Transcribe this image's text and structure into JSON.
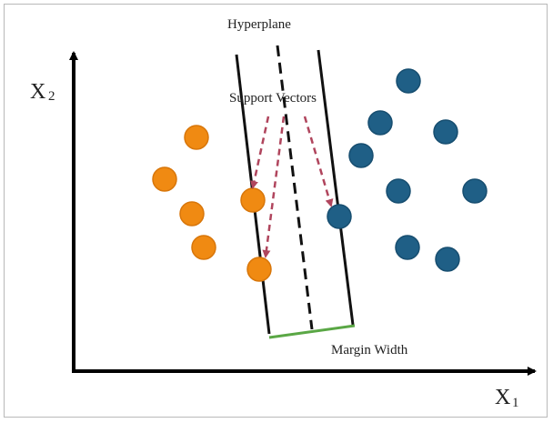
{
  "labels": {
    "hyperplane": "Hyperplane",
    "support_vectors": "Support Vectors",
    "margin_width": "Margin Width",
    "x1_main": "X",
    "x1_sub": "1",
    "x2_main": "X",
    "x2_sub": "2"
  },
  "colors": {
    "class_a": "#f08a12",
    "class_a_stroke": "#d8760a",
    "class_b": "#1f5f86",
    "class_b_stroke": "#174e70",
    "axis": "#000000",
    "boundary": "#111111",
    "arrow": "#b0455d",
    "margin": "#5aa745"
  }
}
